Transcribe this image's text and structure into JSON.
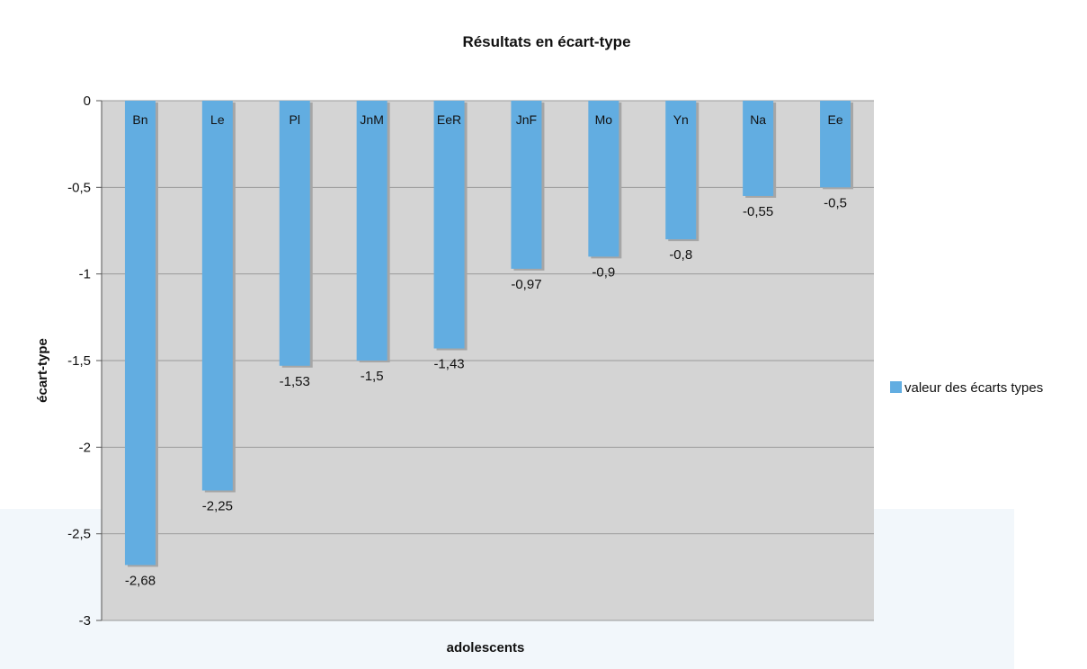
{
  "chart_data": {
    "type": "bar",
    "title": "Résultats en écart-type",
    "xlabel": "adolescents",
    "ylabel": "écart-type",
    "categories": [
      "Bn",
      "Le",
      "Pl",
      "JnM",
      "EeR",
      "JnF",
      "Mo",
      "Yn",
      "Na",
      "Ee"
    ],
    "series": [
      {
        "name": "valeur des écarts types",
        "values": [
          -2.68,
          -2.25,
          -1.53,
          -1.5,
          -1.43,
          -0.97,
          -0.9,
          -0.8,
          -0.55,
          -0.5
        ],
        "labels": [
          "-2,68",
          "-2,25",
          "-1,53",
          "-1,5",
          "-1,43",
          "-0,97",
          "-0,9",
          "-0,8",
          "-0,55",
          "-0,5"
        ],
        "color": "#62ade1"
      }
    ],
    "ylim": [
      -3,
      0
    ],
    "yticks": [
      0,
      -0.5,
      -1,
      -1.5,
      -2,
      -2.5,
      -3
    ],
    "ytick_labels": [
      "0",
      "-0,5",
      "-1",
      "-1,5",
      "-2",
      "-2,5",
      "-3"
    ],
    "grid": true,
    "legend_position": "right",
    "plot_background": "#d4d4d4",
    "gridline_color": "#9a9a9a"
  }
}
